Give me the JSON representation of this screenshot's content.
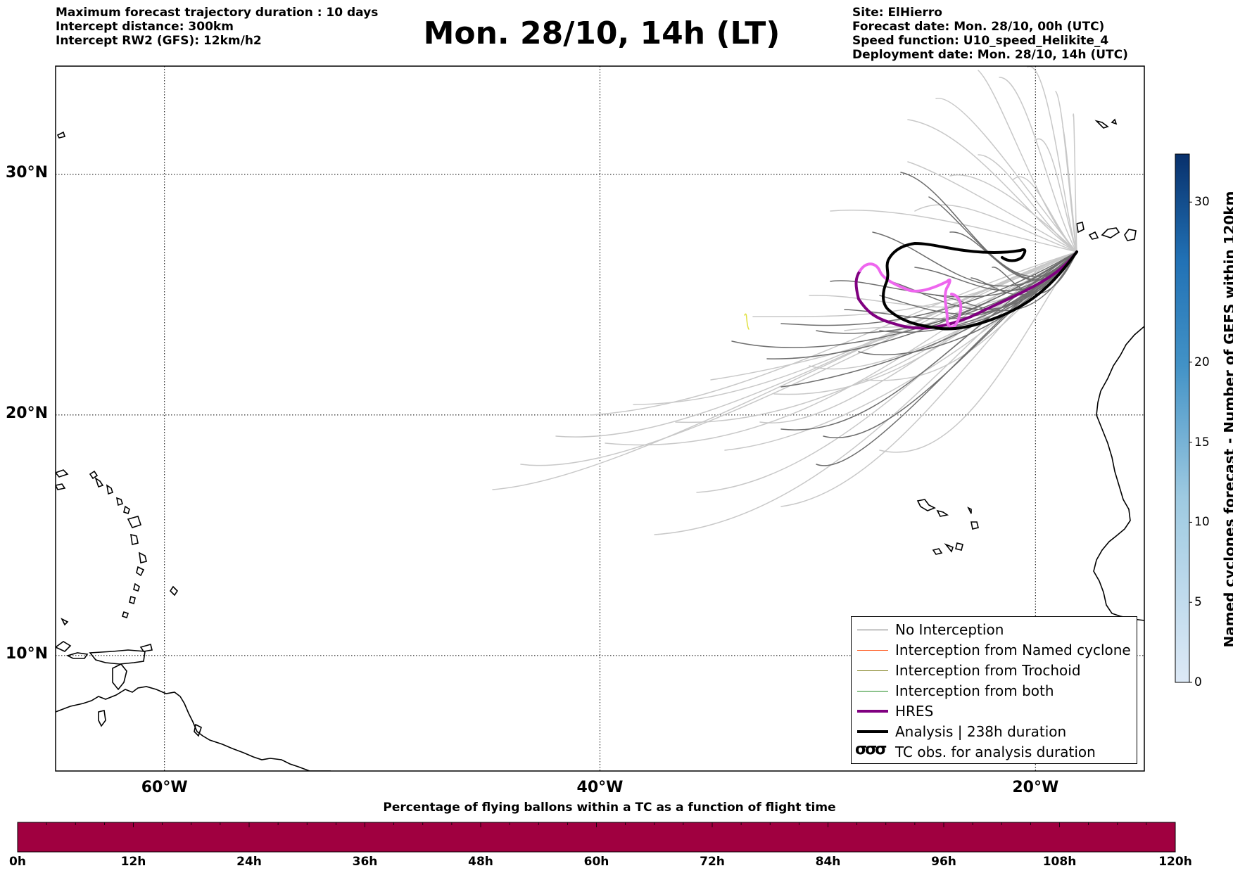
{
  "header": {
    "title": "Mon. 28/10, 14h (LT)",
    "left_lines": [
      "Maximum forecast trajectory duration : 10 days",
      "Intercept distance: 300km",
      "Intercept RW2 (GFS):  12km/h2"
    ],
    "right_lines": [
      "Site: ElHierro",
      "Forecast date: Mon. 28/10, 00h (UTC)",
      "Speed function: U10_speed_Helikite_4",
      "Deployment date: Mon. 28/10, 14h (UTC)"
    ]
  },
  "map": {
    "lat_ticks": [
      {
        "value": 30,
        "label": "30°N"
      },
      {
        "value": 20,
        "label": "20°N"
      },
      {
        "value": 10,
        "label": "10°N"
      }
    ],
    "lon_ticks": [
      {
        "value": -60,
        "label": "60°W"
      },
      {
        "value": -40,
        "label": "40°W"
      },
      {
        "value": -20,
        "label": "20°W"
      }
    ],
    "lon_range": [
      -65,
      -15
    ],
    "lat_range": [
      5.2,
      34.5
    ],
    "colors": {
      "no_interception": "#6e6e6e",
      "far_members": "#c8c8c8",
      "named_cyclone": "#ff5a1f",
      "trochoid": "#808020",
      "both": "#1f8a1f",
      "hres": "#800080",
      "hres_light": "#ee66ee",
      "analysis": "#000000",
      "trochoid_marker": "#e0e040"
    }
  },
  "legend": {
    "items": [
      {
        "label": "No Interception",
        "color": "#6e6e6e",
        "width": 1
      },
      {
        "label": "Interception from Named cyclone",
        "color": "#ff5a1f",
        "width": 1
      },
      {
        "label": "Interception from Trochoid",
        "color": "#808020",
        "width": 1
      },
      {
        "label": "Interception from both",
        "color": "#1f8a1f",
        "width": 1
      },
      {
        "label": "HRES",
        "color": "#800080",
        "width": 4
      },
      {
        "label": "Analysis | 238h duration",
        "color": "#000000",
        "width": 4
      }
    ],
    "tc_obs_symbol": "σσσ",
    "tc_obs_label": "TC obs. for analysis duration"
  },
  "colorbar": {
    "label": "Named cyclones forecast - Number of GEFS within 120km",
    "ticks": [
      0,
      5,
      10,
      15,
      20,
      30
    ],
    "max": 33,
    "color_low": "#dde9f6",
    "color_high": "#08306b"
  },
  "bottom_bar": {
    "title": "Percentage of flying ballons within a TC as a function of flight time",
    "color": "#a00040",
    "tick_labels": [
      "0h",
      "12h",
      "24h",
      "36h",
      "48h",
      "60h",
      "72h",
      "84h",
      "96h",
      "108h",
      "120h"
    ]
  }
}
